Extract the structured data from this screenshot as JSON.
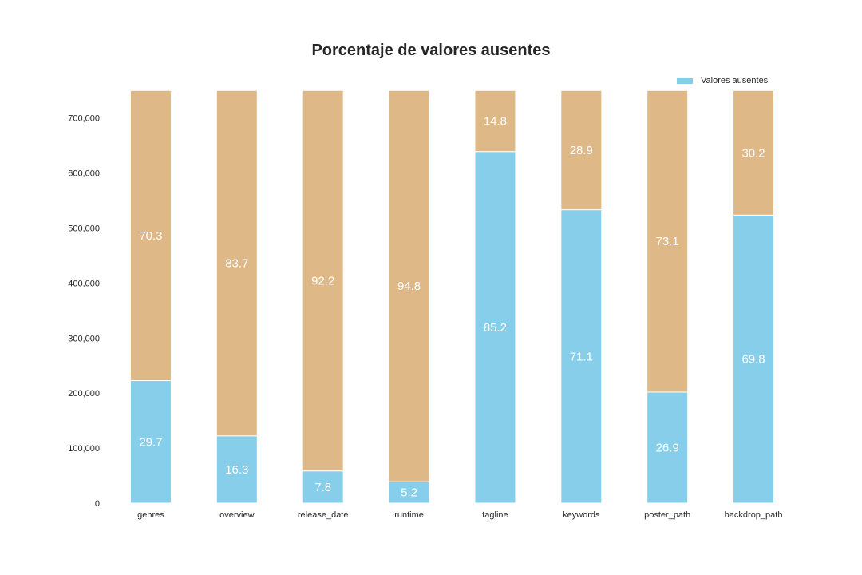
{
  "colors": {
    "missing": "#87CEEB",
    "present": "#DEB887",
    "label_text": "#ffffff",
    "axis_text": "#262626"
  },
  "chart_data": {
    "type": "bar",
    "stacked": true,
    "title": "Porcentaje de valores ausentes",
    "xlabel": "",
    "ylabel": "",
    "categories": [
      "genres",
      "overview",
      "release_date",
      "runtime",
      "tagline",
      "keywords",
      "poster_path",
      "backdrop_path"
    ],
    "total": 750000,
    "ylim": [
      0,
      750000
    ],
    "yticks": [
      0,
      100000,
      200000,
      300000,
      400000,
      500000,
      600000,
      700000
    ],
    "ytick_labels": [
      "0",
      "100,000",
      "200,000",
      "300,000",
      "400,000",
      "500,000",
      "600,000",
      "700,000"
    ],
    "series": [
      {
        "name": "Valores ausentes",
        "color": "#87CEEB",
        "values": [
          29.7,
          16.3,
          7.8,
          5.2,
          85.2,
          71.1,
          26.9,
          69.8
        ]
      },
      {
        "color": "#DEB887",
        "values": [
          70.3,
          83.7,
          92.2,
          94.8,
          14.8,
          28.9,
          73.1,
          30.2
        ]
      }
    ],
    "legend": {
      "entries": [
        "Valores ausentes"
      ],
      "position": "top-right"
    },
    "grid": false
  }
}
